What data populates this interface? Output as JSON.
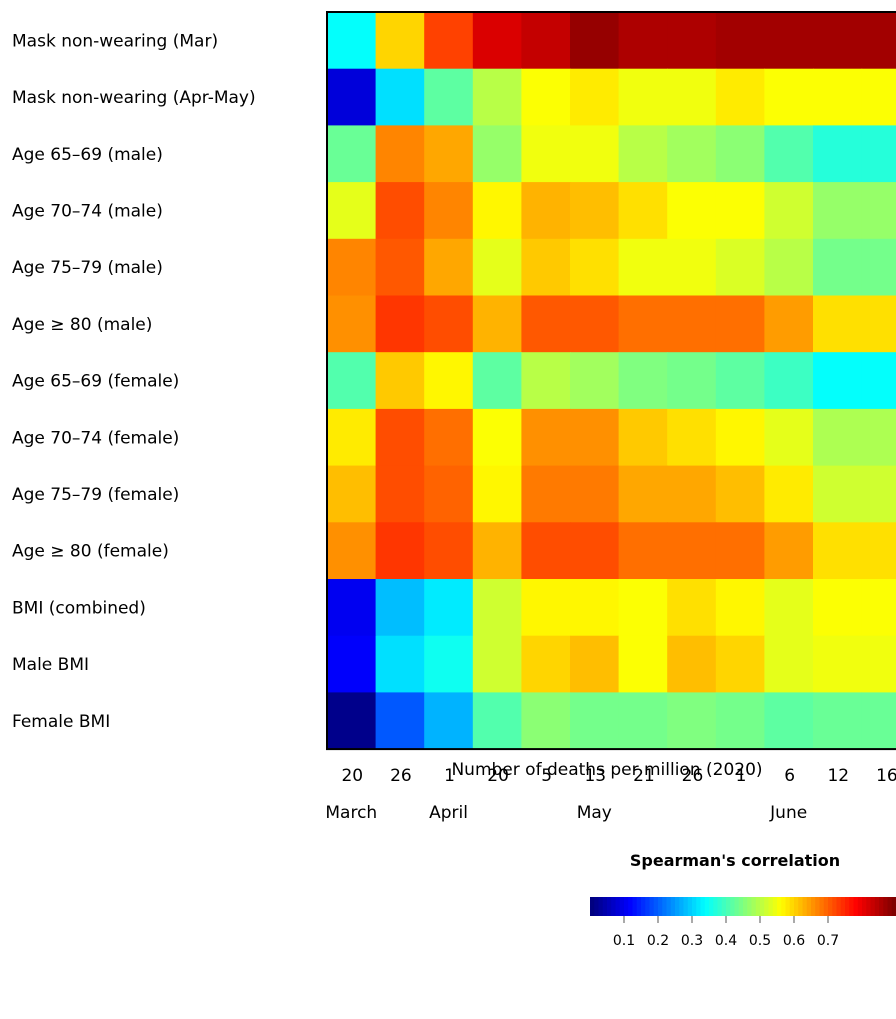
{
  "chart_data": {
    "type": "heatmap",
    "title": "",
    "xlabel": "Number of deaths per million (2020)",
    "ylabel": "",
    "x_ticks": [
      "20",
      "26",
      "1",
      "20",
      "5",
      "13",
      "21",
      "26",
      "1",
      "6",
      "12",
      "16"
    ],
    "months": [
      "March",
      "April",
      "May",
      "June"
    ],
    "rows": [
      "Mask non-wearing (Mar)",
      "Mask non-wearing (Apr-May)",
      "Age 65–69 (male)",
      "Age 70–74 (male)",
      "Age 75–79 (male)",
      "Age ≥ 80 (male)",
      "Age 65–69 (female)",
      "Age 70–74 (female)",
      "Age 75–79 (female)",
      "Age ≥ 80 (female)",
      "BMI (combined)",
      "Male BMI",
      "Female BMI"
    ],
    "values": [
      [
        0.34,
        0.6,
        0.73,
        0.82,
        0.84,
        0.88,
        0.86,
        0.86,
        0.87,
        0.87,
        0.87,
        0.87
      ],
      [
        0.08,
        0.31,
        0.42,
        0.5,
        0.56,
        0.58,
        0.55,
        0.55,
        0.58,
        0.56,
        0.56,
        0.56
      ],
      [
        0.43,
        0.67,
        0.64,
        0.47,
        0.55,
        0.55,
        0.5,
        0.48,
        0.46,
        0.41,
        0.37,
        0.37
      ],
      [
        0.54,
        0.72,
        0.67,
        0.57,
        0.63,
        0.62,
        0.59,
        0.56,
        0.56,
        0.52,
        0.47,
        0.47
      ],
      [
        0.67,
        0.71,
        0.64,
        0.54,
        0.61,
        0.59,
        0.55,
        0.55,
        0.53,
        0.5,
        0.44,
        0.44
      ],
      [
        0.66,
        0.74,
        0.72,
        0.63,
        0.71,
        0.71,
        0.69,
        0.69,
        0.69,
        0.65,
        0.59,
        0.59
      ],
      [
        0.41,
        0.61,
        0.57,
        0.42,
        0.5,
        0.48,
        0.45,
        0.44,
        0.42,
        0.39,
        0.34,
        0.34
      ],
      [
        0.58,
        0.72,
        0.69,
        0.56,
        0.66,
        0.66,
        0.61,
        0.59,
        0.57,
        0.54,
        0.49,
        0.49
      ],
      [
        0.62,
        0.72,
        0.7,
        0.57,
        0.68,
        0.68,
        0.64,
        0.64,
        0.62,
        0.58,
        0.52,
        0.52
      ],
      [
        0.66,
        0.74,
        0.72,
        0.63,
        0.72,
        0.72,
        0.69,
        0.69,
        0.69,
        0.65,
        0.59,
        0.59
      ],
      [
        0.1,
        0.28,
        0.32,
        0.52,
        0.57,
        0.57,
        0.56,
        0.59,
        0.57,
        0.54,
        0.56,
        0.56
      ],
      [
        0.11,
        0.31,
        0.35,
        0.52,
        0.6,
        0.62,
        0.56,
        0.62,
        0.6,
        0.54,
        0.55,
        0.55
      ],
      [
        0.01,
        0.19,
        0.27,
        0.41,
        0.46,
        0.44,
        0.44,
        0.45,
        0.44,
        0.42,
        0.43,
        0.43
      ]
    ],
    "colorbar": {
      "title": "Spearman's correlation",
      "range": [
        0.0,
        0.9
      ],
      "ticks": [
        "0.1",
        "0.2",
        "0.3",
        "0.4",
        "0.5",
        "0.6",
        "0.7"
      ],
      "colormap": "jet"
    }
  }
}
